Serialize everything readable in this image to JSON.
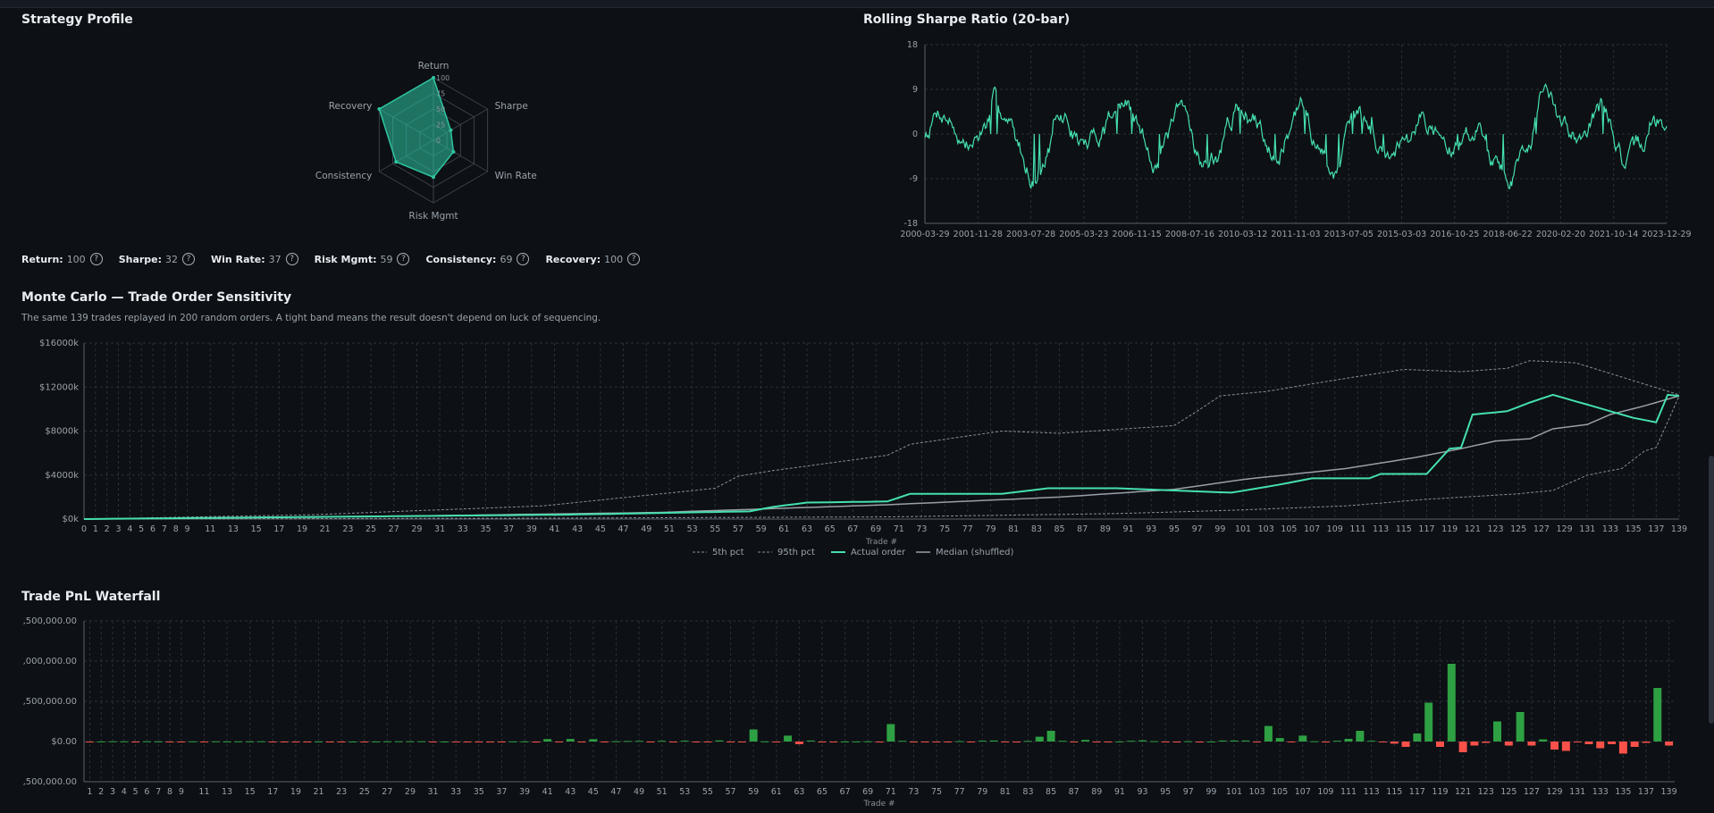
{
  "profile": {
    "title": "Strategy Profile",
    "axes": [
      "Return",
      "Sharpe",
      "Win Rate",
      "Risk Mgmt",
      "Consistency",
      "Recovery"
    ],
    "values": [
      100,
      32,
      37,
      59,
      69,
      100
    ],
    "ring_labels": [
      "0",
      "25",
      "50",
      "75",
      "100"
    ],
    "metrics": [
      {
        "label": "Return:",
        "value": "100"
      },
      {
        "label": "Sharpe:",
        "value": "32"
      },
      {
        "label": "Win Rate:",
        "value": "37"
      },
      {
        "label": "Risk Mgmt:",
        "value": "59"
      },
      {
        "label": "Consistency:",
        "value": "69"
      },
      {
        "label": "Recovery:",
        "value": "100"
      }
    ],
    "help_glyph": "?",
    "color": "#2ec4a0"
  },
  "sharpe": {
    "title": "Rolling Sharpe Ratio (20-bar)",
    "y_ticks": [
      "18",
      "9",
      "0",
      "-9",
      "-18"
    ],
    "y_values": [
      18,
      9,
      0,
      -9,
      -18
    ],
    "x_ticks": [
      "2000-03-29",
      "2001-11-28",
      "2003-07-28",
      "2005-03-23",
      "2006-11-15",
      "2008-07-16",
      "2010-03-12",
      "2011-11-03",
      "2013-07-05",
      "2015-03-03",
      "2016-10-25",
      "2018-06-22",
      "2020-02-20",
      "2021-10-14",
      "2023-12-29"
    ],
    "line_color": "#45e0ae"
  },
  "monte_carlo": {
    "title": "Monte Carlo — Trade Order Sensitivity",
    "subtitle": "The same 139 trades replayed in 200 random orders. A tight band means the result doesn't depend on luck of sequencing.",
    "y_ticks": [
      "$16000k",
      "$12000k",
      "$8000k",
      "$4000k",
      "$0k"
    ],
    "y_values": [
      16000,
      12000,
      8000,
      4000,
      0
    ],
    "x_ticks": [
      "0",
      "1",
      "2",
      "3",
      "4",
      "5",
      "6",
      "7",
      "8",
      "9",
      "11",
      "13",
      "15",
      "17",
      "19",
      "21",
      "23",
      "25",
      "27",
      "29",
      "31",
      "33",
      "35",
      "37",
      "39",
      "41",
      "43",
      "45",
      "47",
      "49",
      "51",
      "53",
      "55",
      "57",
      "59",
      "61",
      "63",
      "65",
      "67",
      "69",
      "71",
      "73",
      "75",
      "77",
      "79",
      "81",
      "83",
      "85",
      "87",
      "89",
      "91",
      "93",
      "95",
      "97",
      "99",
      "101",
      "103",
      "105",
      "107",
      "109",
      "111",
      "113",
      "115",
      "117",
      "119",
      "121",
      "123",
      "125",
      "127",
      "129",
      "131",
      "133",
      "135",
      "137",
      "139"
    ],
    "x_label": "Trade #",
    "legend": [
      "5th pct",
      "95th pct",
      "Actual order",
      "Median (shuffled)"
    ],
    "colors": {
      "actual": "#45e0ae",
      "median": "#9aa0a8",
      "band": "#8a9098"
    }
  },
  "waterfall": {
    "title": "Trade PnL Waterfall",
    "y_ticks": [
      ",500,000.00",
      ",000,000.00",
      ",500,000.00",
      "$0.00",
      ",500,000.00"
    ],
    "y_values": [
      4500000,
      3000000,
      1500000,
      0,
      -1500000
    ],
    "x_ticks": [
      "1",
      "2",
      "3",
      "4",
      "5",
      "6",
      "7",
      "8",
      "9",
      "11",
      "13",
      "15",
      "17",
      "19",
      "21",
      "23",
      "25",
      "27",
      "29",
      "31",
      "33",
      "35",
      "37",
      "39",
      "41",
      "43",
      "45",
      "47",
      "49",
      "51",
      "53",
      "55",
      "57",
      "59",
      "61",
      "63",
      "65",
      "67",
      "69",
      "71",
      "73",
      "75",
      "77",
      "79",
      "81",
      "83",
      "85",
      "87",
      "89",
      "91",
      "93",
      "95",
      "97",
      "99",
      "101",
      "103",
      "105",
      "107",
      "109",
      "111",
      "113",
      "115",
      "117",
      "119",
      "121",
      "123",
      "125",
      "127",
      "129",
      "131",
      "133",
      "135",
      "137",
      "139"
    ],
    "x_label": "Trade #",
    "colors": {
      "pos": "#2ea043",
      "neg": "#f85149"
    }
  }
}
